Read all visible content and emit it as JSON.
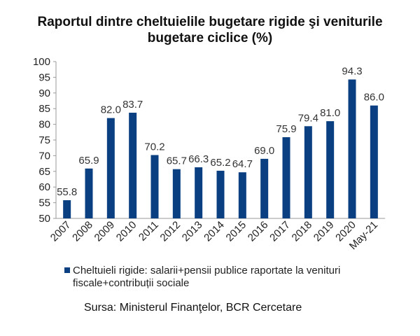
{
  "chart_data": {
    "type": "bar",
    "title_lines": [
      "Raportul dintre cheltuielile bugetare rigide şi veniturile",
      "bugetare ciclice (%)"
    ],
    "categories": [
      "2007",
      "2008",
      "2009",
      "2010",
      "2011",
      "2012",
      "2013",
      "2014",
      "2015",
      "2016",
      "2017",
      "2018",
      "2019",
      "2020",
      "May-21"
    ],
    "series": [
      {
        "name": "Cheltuieli rigide: salarii+pensii publice raportate la venituri fiscale+contribuții sociale",
        "values": [
          55.8,
          65.9,
          82.0,
          83.7,
          70.2,
          65.7,
          66.3,
          65.2,
          64.7,
          69.0,
          75.9,
          79.4,
          81.0,
          94.3,
          86.0
        ],
        "value_labels": [
          "55.8",
          "65.9",
          "82.0",
          "83.7",
          "70.2",
          "65.7",
          "66.3",
          "65.2",
          "64.7",
          "69.0",
          "75.9",
          "79.4",
          "81.0",
          "94.3",
          "86.0"
        ],
        "color": "#0a3f82"
      }
    ],
    "y_ticks": [
      "50",
      "55",
      "60",
      "65",
      "70",
      "75",
      "80",
      "85",
      "90",
      "95",
      "100"
    ],
    "ylim": [
      50,
      100
    ],
    "grid": false,
    "legend_position": "bottom",
    "source": "Sursa: Ministerul Finanţelor, BCR Cercetare"
  }
}
